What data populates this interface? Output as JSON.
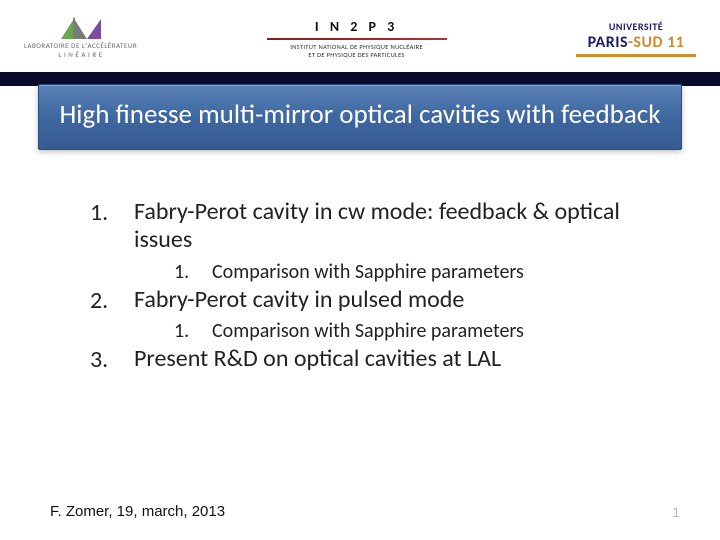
{
  "logos": {
    "lal_line1": "LABORATOIRE DE L'ACCÉLÉRATEUR",
    "lal_line2": "L I N É A I R E",
    "in2p3_title": "I N 2 P 3",
    "in2p3_sub1": "INSTITUT NATIONAL DE PHYSIQUE NUCLÉAIRE",
    "in2p3_sub2": "ET DE PHYSIQUE DES PARTICULES",
    "psud_top": "UNIVERSITÉ",
    "psud_main_a": "PARIS",
    "psud_main_b": "-SUD 11"
  },
  "title": "High finesse multi-mirror optical cavities with feedback",
  "outline": {
    "items": [
      {
        "n": "1.",
        "text": "Fabry-Perot cavity in cw mode: feedback & optical issues",
        "sub": [
          {
            "n": "1.",
            "text": "Comparison with Sapphire parameters"
          }
        ]
      },
      {
        "n": "2.",
        "text": "Fabry-Perot cavity in pulsed mode",
        "sub": [
          {
            "n": "1.",
            "text": "Comparison with Sapphire parameters"
          }
        ]
      },
      {
        "n": "3.",
        "text": "Present R&D on optical cavities at LAL",
        "sub": []
      }
    ]
  },
  "footer": {
    "author": "F. Zomer, 19, march, 2013",
    "page": "1"
  },
  "colors": {
    "title_grad_top": "#5a82b8",
    "title_grad_bot": "#365b92",
    "navy": "#0a0a2a",
    "text": "#222222",
    "page_num": "#b9b9b9"
  }
}
